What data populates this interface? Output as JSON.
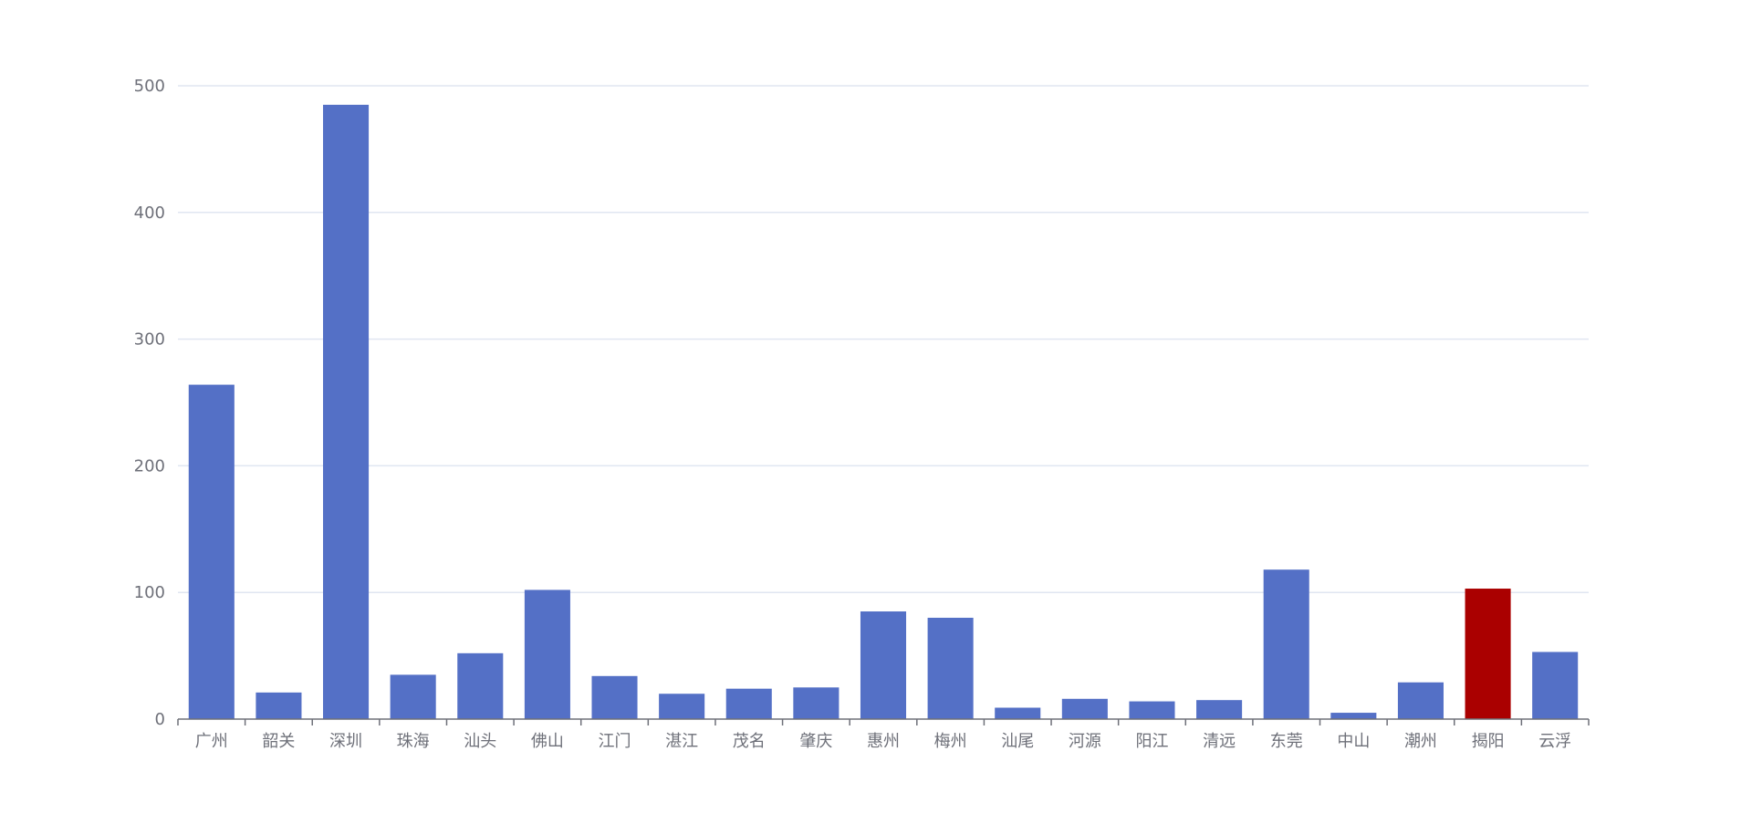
{
  "chart_data": {
    "type": "bar",
    "title": "",
    "xlabel": "",
    "ylabel": "",
    "categories": [
      "广州",
      "韶关",
      "深圳",
      "珠海",
      "汕头",
      "佛山",
      "江门",
      "湛江",
      "茂名",
      "肇庆",
      "惠州",
      "梅州",
      "汕尾",
      "河源",
      "阳江",
      "清远",
      "东莞",
      "中山",
      "潮州",
      "揭阳",
      "云浮"
    ],
    "values": [
      264,
      21,
      485,
      35,
      52,
      102,
      34,
      20,
      24,
      25,
      85,
      80,
      9,
      16,
      14,
      15,
      118,
      5,
      29,
      103,
      53
    ],
    "highlight_category": "揭阳",
    "ylim": [
      0,
      500
    ],
    "yticks": [
      0,
      100,
      200,
      300,
      400,
      500
    ],
    "grid": true,
    "legend": "none",
    "colors": {
      "bar": "#5470c6",
      "highlight": "#aa0000",
      "grid": "#e0e6f1",
      "axis": "#6e7079",
      "label": "#6e7079"
    }
  }
}
